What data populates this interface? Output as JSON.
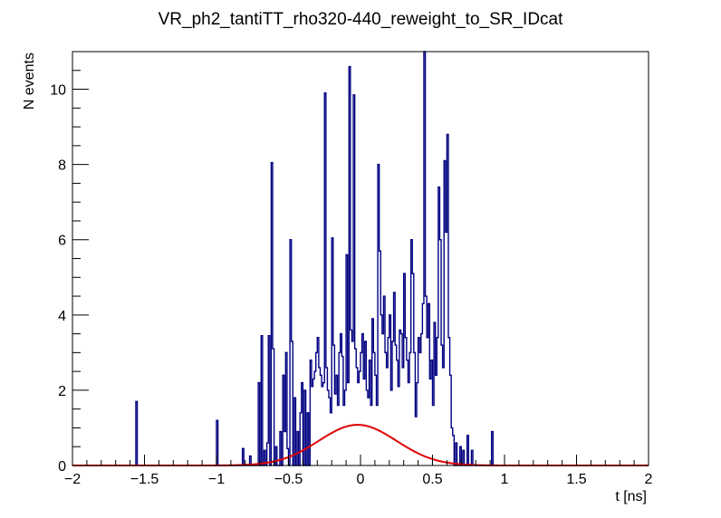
{
  "chart_data": {
    "type": "histogram",
    "title": "VR_ph2_tantiTT_rho320-440_reweight_to_SR_IDcat",
    "xlabel": "t [ns]",
    "ylabel": "N events",
    "xlim": [
      -2,
      2
    ],
    "ylim": [
      0,
      11
    ],
    "x_ticks": [
      -2,
      -1.5,
      -1,
      -0.5,
      0,
      0.5,
      1,
      1.5,
      2
    ],
    "x_tick_labels": [
      "−2",
      "−1.5",
      "−1",
      "−0.5",
      "0",
      "0.5",
      "1",
      "1.5",
      "2"
    ],
    "y_ticks": [
      0,
      2,
      4,
      6,
      8,
      10
    ],
    "y_tick_labels": [
      "0",
      "2",
      "4",
      "6",
      "8",
      "10"
    ],
    "bin_width": 0.01,
    "series": [
      {
        "style": "step",
        "color": "#000080",
        "bins": [
          [
            -1.56,
            1.7
          ],
          [
            -1.0,
            1.2
          ],
          [
            -0.82,
            0.45
          ],
          [
            -0.77,
            0.25
          ],
          [
            -0.71,
            2.2
          ],
          [
            -0.69,
            3.45
          ],
          [
            -0.67,
            0.4
          ],
          [
            -0.65,
            0.6
          ],
          [
            -0.64,
            3.45
          ],
          [
            -0.62,
            8.05
          ],
          [
            -0.61,
            3.1
          ],
          [
            -0.59,
            0.5
          ],
          [
            -0.56,
            0.9
          ],
          [
            -0.54,
            2.4
          ],
          [
            -0.53,
            0.9
          ],
          [
            -0.52,
            3.0
          ],
          [
            -0.51,
            0.45
          ],
          [
            -0.49,
            6.0
          ],
          [
            -0.48,
            3.3
          ],
          [
            -0.46,
            1.8
          ],
          [
            -0.44,
            0.9
          ],
          [
            -0.42,
            1.4
          ],
          [
            -0.41,
            2.2
          ],
          [
            -0.39,
            2.0
          ],
          [
            -0.37,
            1.4
          ],
          [
            -0.35,
            2.8
          ],
          [
            -0.34,
            2.1
          ],
          [
            -0.33,
            2.3
          ],
          [
            -0.32,
            2.5
          ],
          [
            -0.31,
            3.0
          ],
          [
            -0.3,
            3.4
          ],
          [
            -0.29,
            2.6
          ],
          [
            -0.28,
            2.4
          ],
          [
            -0.27,
            2.1
          ],
          [
            -0.26,
            2.2
          ],
          [
            -0.25,
            9.9
          ],
          [
            -0.24,
            2.6
          ],
          [
            -0.23,
            2.0
          ],
          [
            -0.22,
            1.8
          ],
          [
            -0.21,
            1.4
          ],
          [
            -0.2,
            6.05
          ],
          [
            -0.19,
            3.2
          ],
          [
            -0.18,
            1.9
          ],
          [
            -0.17,
            2.4
          ],
          [
            -0.16,
            1.6
          ],
          [
            -0.15,
            3.0
          ],
          [
            -0.14,
            3.5
          ],
          [
            -0.13,
            2.9
          ],
          [
            -0.12,
            1.6
          ],
          [
            -0.11,
            2.0
          ],
          [
            -0.1,
            5.6
          ],
          [
            -0.09,
            2.2
          ],
          [
            -0.08,
            10.6
          ],
          [
            -0.07,
            3.6
          ],
          [
            -0.06,
            3.3
          ],
          [
            -0.05,
            9.85
          ],
          [
            -0.04,
            3.1
          ],
          [
            -0.03,
            2.6
          ],
          [
            -0.02,
            2.2
          ],
          [
            -0.01,
            2.5
          ],
          [
            0.0,
            3.0
          ],
          [
            0.01,
            3.5
          ],
          [
            0.02,
            2.3
          ],
          [
            0.03,
            3.3
          ],
          [
            0.04,
            2.0
          ],
          [
            0.05,
            1.8
          ],
          [
            0.06,
            2.8
          ],
          [
            0.07,
            1.6
          ],
          [
            0.08,
            3.9
          ],
          [
            0.09,
            3.0
          ],
          [
            0.1,
            2.4
          ],
          [
            0.11,
            1.6
          ],
          [
            0.12,
            8.0
          ],
          [
            0.13,
            5.7
          ],
          [
            0.14,
            4.0
          ],
          [
            0.15,
            3.5
          ],
          [
            0.16,
            4.5
          ],
          [
            0.17,
            3.0
          ],
          [
            0.18,
            2.6
          ],
          [
            0.19,
            3.4
          ],
          [
            0.2,
            4.0
          ],
          [
            0.21,
            2.0
          ],
          [
            0.22,
            3.3
          ],
          [
            0.23,
            4.6
          ],
          [
            0.24,
            3.2
          ],
          [
            0.25,
            2.8
          ],
          [
            0.26,
            2.1
          ],
          [
            0.27,
            3.6
          ],
          [
            0.28,
            3.5
          ],
          [
            0.29,
            2.6
          ],
          [
            0.3,
            5.1
          ],
          [
            0.31,
            3.4
          ],
          [
            0.32,
            2.8
          ],
          [
            0.33,
            2.2
          ],
          [
            0.34,
            3.0
          ],
          [
            0.35,
            6.0
          ],
          [
            0.36,
            5.1
          ],
          [
            0.37,
            3.0
          ],
          [
            0.38,
            1.3
          ],
          [
            0.39,
            2.2
          ],
          [
            0.4,
            3.4
          ],
          [
            0.41,
            3.0
          ],
          [
            0.42,
            3.5
          ],
          [
            0.43,
            4.3
          ],
          [
            0.44,
            11.0
          ],
          [
            0.45,
            4.5
          ],
          [
            0.46,
            3.4
          ],
          [
            0.47,
            4.3
          ],
          [
            0.48,
            2.3
          ],
          [
            0.49,
            2.8
          ],
          [
            0.5,
            1.6
          ],
          [
            0.51,
            3.8
          ],
          [
            0.52,
            2.4
          ],
          [
            0.53,
            3.4
          ],
          [
            0.54,
            7.4
          ],
          [
            0.55,
            6.0
          ],
          [
            0.56,
            3.2
          ],
          [
            0.57,
            2.6
          ],
          [
            0.58,
            8.1
          ],
          [
            0.59,
            6.2
          ],
          [
            0.6,
            8.8
          ],
          [
            0.61,
            3.4
          ],
          [
            0.62,
            2.4
          ],
          [
            0.63,
            1.0
          ],
          [
            0.64,
            0.8
          ],
          [
            0.66,
            0.6
          ],
          [
            0.69,
            0.5
          ],
          [
            0.71,
            0.4
          ],
          [
            0.74,
            0.8
          ],
          [
            0.77,
            0.4
          ],
          [
            0.91,
            0.9
          ]
        ]
      },
      {
        "style": "curve",
        "color": "#e00000",
        "function": "gaussian",
        "amplitude": 1.08,
        "mean": -0.02,
        "sigma": 0.27
      }
    ]
  }
}
